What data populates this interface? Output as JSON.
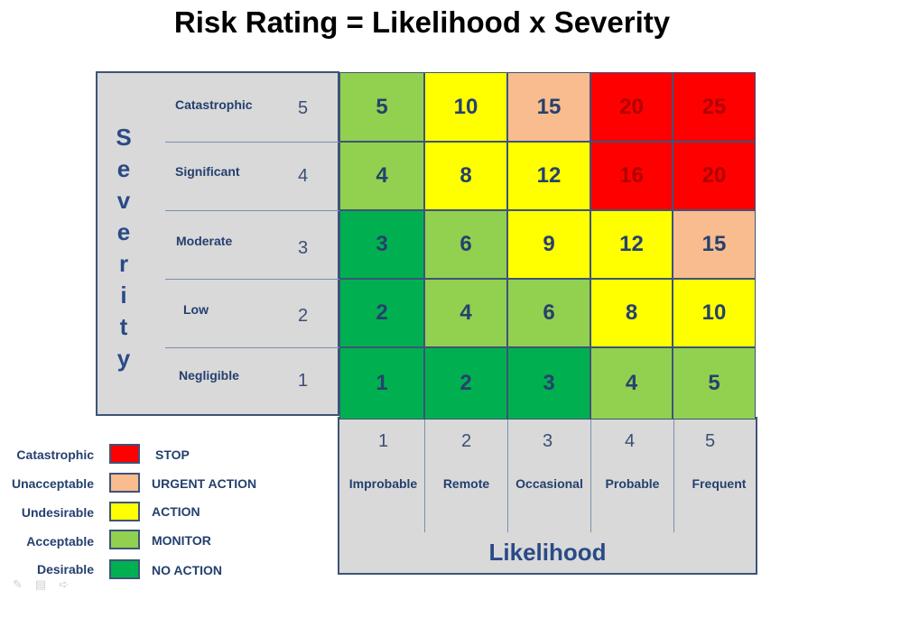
{
  "title": "Risk Rating = Likelihood x Severity",
  "severity_axis": {
    "title_letters": [
      "S",
      "e",
      "v",
      "e",
      "r",
      "i",
      "t",
      "y"
    ],
    "levels": [
      {
        "label": "Catastrophic",
        "value": "5"
      },
      {
        "label": "Significant",
        "value": "4"
      },
      {
        "label": "Moderate",
        "value": "3"
      },
      {
        "label": "Low",
        "value": "2"
      },
      {
        "label": "Negligible",
        "value": "1"
      }
    ]
  },
  "likelihood_axis": {
    "title": "Likelihood",
    "levels": [
      {
        "label": "Improbable",
        "value": "1"
      },
      {
        "label": "Remote",
        "value": "2"
      },
      {
        "label": "Occasional",
        "value": "3"
      },
      {
        "label": "Probable",
        "value": "4"
      },
      {
        "label": "Frequent",
        "value": "5"
      }
    ]
  },
  "matrix": {
    "rows": [
      [
        {
          "value": "5",
          "category": "Acceptable"
        },
        {
          "value": "10",
          "category": "Undesirable"
        },
        {
          "value": "15",
          "category": "Unacceptable"
        },
        {
          "value": "20",
          "category": "Catastrophic"
        },
        {
          "value": "25",
          "category": "Catastrophic"
        }
      ],
      [
        {
          "value": "4",
          "category": "Acceptable"
        },
        {
          "value": "8",
          "category": "Undesirable"
        },
        {
          "value": "12",
          "category": "Undesirable"
        },
        {
          "value": "16",
          "category": "Catastrophic"
        },
        {
          "value": "20",
          "category": "Catastrophic"
        }
      ],
      [
        {
          "value": "3",
          "category": "Desirable"
        },
        {
          "value": "6",
          "category": "Acceptable"
        },
        {
          "value": "9",
          "category": "Undesirable"
        },
        {
          "value": "12",
          "category": "Undesirable"
        },
        {
          "value": "15",
          "category": "Unacceptable"
        }
      ],
      [
        {
          "value": "2",
          "category": "Desirable"
        },
        {
          "value": "4",
          "category": "Acceptable"
        },
        {
          "value": "6",
          "category": "Acceptable"
        },
        {
          "value": "8",
          "category": "Undesirable"
        },
        {
          "value": "10",
          "category": "Undesirable"
        }
      ],
      [
        {
          "value": "1",
          "category": "Desirable"
        },
        {
          "value": "2",
          "category": "Desirable"
        },
        {
          "value": "3",
          "category": "Desirable"
        },
        {
          "value": "4",
          "category": "Acceptable"
        },
        {
          "value": "5",
          "category": "Acceptable"
        }
      ]
    ]
  },
  "legend": [
    {
      "category": "Catastrophic",
      "action": "STOP",
      "color": "#ff0000"
    },
    {
      "category": "Unacceptable",
      "action": "URGENT ACTION",
      "color": "#f8bc8f"
    },
    {
      "category": "Undesirable",
      "action": "ACTION",
      "color": "#ffff00"
    },
    {
      "category": "Acceptable",
      "action": "MONITOR",
      "color": "#92d050"
    },
    {
      "category": "Desirable",
      "action": "NO ACTION",
      "color": "#00b050"
    }
  ]
}
